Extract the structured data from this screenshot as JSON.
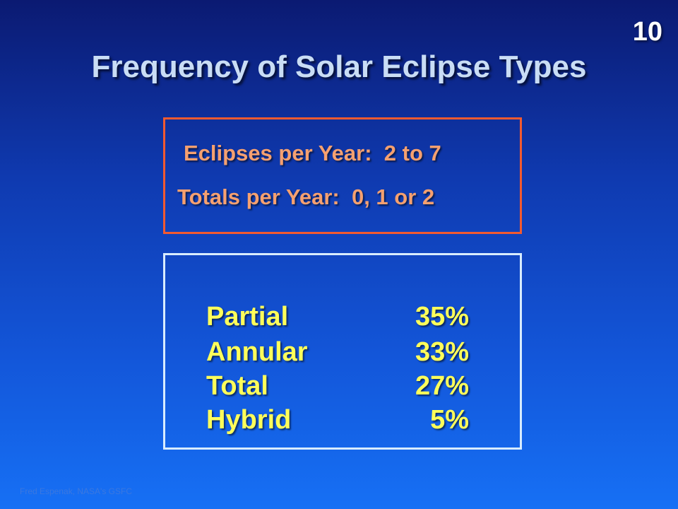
{
  "slide": {
    "number": "10",
    "title": "Frequency of Solar Eclipse Types",
    "credit": "Fred Espenak, NASA's GSFC"
  },
  "counts": {
    "eclipses_per_year": "Eclipses per Year:  2 to 7",
    "totals_per_year": "Totals per Year:  0, 1 or 2"
  },
  "types": [
    {
      "name": "Partial",
      "percent": "35%"
    },
    {
      "name": "Annular",
      "percent": "33%"
    },
    {
      "name": "Total",
      "percent": "27%"
    },
    {
      "name": "Hybrid",
      "percent": "5%"
    }
  ],
  "colors": {
    "title": "#c9ddf5",
    "counts_text": "#f5a070",
    "counts_border": "#f25a30",
    "types_text": "#ffff5a",
    "types_border": "#d8ecff"
  }
}
